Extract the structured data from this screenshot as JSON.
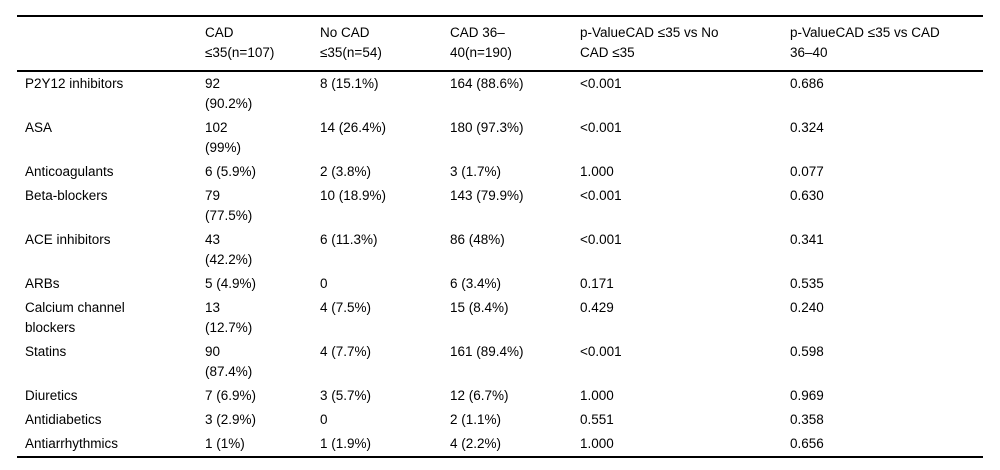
{
  "table": {
    "columns": [
      "",
      "CAD\n≤35(n=107)",
      "No CAD\n≤35(n=54)",
      "CAD 36–\n40(n=190)",
      "p-ValueCAD ≤35 vs No\nCAD ≤35",
      "p-ValueCAD ≤35 vs CAD\n36–40"
    ],
    "rows": [
      {
        "label": "P2Y12 inhibitors",
        "values": [
          "92\n(90.2%)",
          "8 (15.1%)",
          "164 (88.6%)",
          "<0.001",
          "0.686"
        ]
      },
      {
        "label": "ASA",
        "values": [
          "102\n(99%)",
          "14 (26.4%)",
          "180 (97.3%)",
          "<0.001",
          "0.324"
        ]
      },
      {
        "label": "Anticoagulants",
        "values": [
          "6 (5.9%)",
          "2 (3.8%)",
          "3 (1.7%)",
          "1.000",
          "0.077"
        ]
      },
      {
        "label": "Beta-blockers",
        "values": [
          "79\n(77.5%)",
          "10 (18.9%)",
          "143 (79.9%)",
          "<0.001",
          "0.630"
        ]
      },
      {
        "label": "ACE inhibitors",
        "values": [
          "43\n(42.2%)",
          "6 (11.3%)",
          "86 (48%)",
          "<0.001",
          "0.341"
        ]
      },
      {
        "label": "ARBs",
        "values": [
          "5 (4.9%)",
          "0",
          "6 (3.4%)",
          "0.171",
          "0.535"
        ]
      },
      {
        "label": "Calcium channel\nblockers",
        "values": [
          "13\n(12.7%)",
          "4 (7.5%)",
          "15 (8.4%)",
          "0.429",
          "0.240"
        ]
      },
      {
        "label": "Statins",
        "values": [
          "90\n(87.4%)",
          "4 (7.7%)",
          "161 (89.4%)",
          "<0.001",
          "0.598"
        ]
      },
      {
        "label": "Diuretics",
        "values": [
          "7 (6.9%)",
          "3 (5.7%)",
          "12 (6.7%)",
          "1.000",
          "0.969"
        ]
      },
      {
        "label": "Antidiabetics",
        "values": [
          "3 (2.9%)",
          "0",
          "2 (1.1%)",
          "0.551",
          "0.358"
        ]
      },
      {
        "label": "Antiarrhythmics",
        "values": [
          "1 (1%)",
          "1 (1.9%)",
          "4 (2.2%)",
          "1.000",
          "0.656"
        ]
      }
    ]
  }
}
